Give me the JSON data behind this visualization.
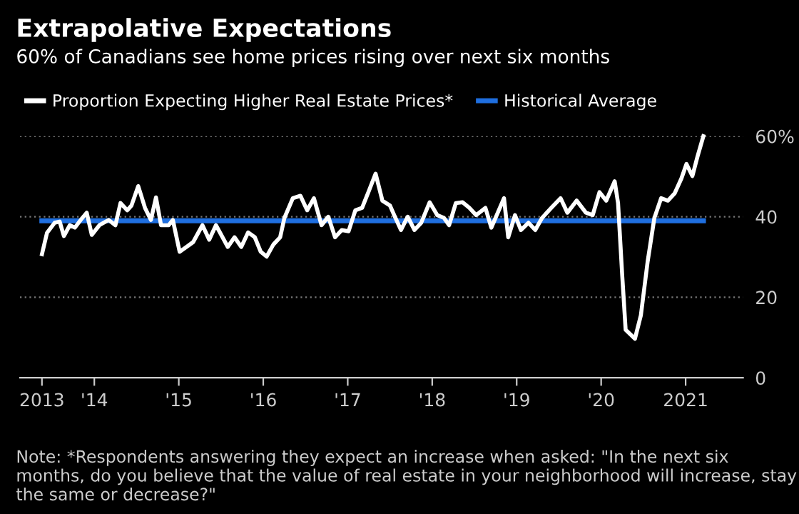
{
  "chart_data": {
    "type": "line",
    "title": "Extrapolative Expectations",
    "subtitle": "60% of Canadians see home prices rising over next six months",
    "series": [
      {
        "name": "Proportion Expecting Higher Real Estate Prices*",
        "color": "#ffffff",
        "x": [
          2013.38,
          2013.44,
          2013.53,
          2013.59,
          2013.64,
          2013.71,
          2013.77,
          2013.85,
          2013.91,
          2013.97,
          2014.06,
          2014.17,
          2014.25,
          2014.31,
          2014.39,
          2014.44,
          2014.52,
          2014.6,
          2014.67,
          2014.73,
          2014.79,
          2014.88,
          2014.93,
          2015.01,
          2015.09,
          2015.17,
          2015.28,
          2015.36,
          2015.44,
          2015.58,
          2015.66,
          2015.74,
          2015.82,
          2015.9,
          2015.97,
          2016.04,
          2016.12,
          2016.2,
          2016.25,
          2016.35,
          2016.44,
          2016.52,
          2016.6,
          2016.69,
          2016.77,
          2016.85,
          2016.93,
          2017.01,
          2017.09,
          2017.17,
          2017.25,
          2017.33,
          2017.41,
          2017.5,
          2017.55,
          2017.63,
          2017.71,
          2017.79,
          2017.87,
          2017.97,
          2018.06,
          2018.14,
          2018.2,
          2018.28,
          2018.36,
          2018.44,
          2018.52,
          2018.63,
          2018.7,
          2018.78,
          2018.85,
          2018.9,
          2018.98,
          2019.05,
          2019.14,
          2019.22,
          2019.3,
          2019.41,
          2019.52,
          2019.6,
          2019.71,
          2019.82,
          2019.9,
          2019.98,
          2020.06,
          2020.16,
          2020.2,
          2020.25,
          2020.29,
          2020.4,
          2020.47,
          2020.55,
          2020.63,
          2020.71,
          2020.79,
          2020.87,
          2020.95,
          2021.01,
          2021.08,
          2021.14,
          2021.21
        ],
        "values": [
          30.7,
          36,
          38.5,
          38.8,
          35.2,
          37.9,
          37.3,
          39.5,
          41,
          35.5,
          37.9,
          39.2,
          37.9,
          43.4,
          41.6,
          42.8,
          47.6,
          42.2,
          39.2,
          44.8,
          37.9,
          37.9,
          39.2,
          31.3,
          32.5,
          33.7,
          37.9,
          34.3,
          37.9,
          32.5,
          34.9,
          32.5,
          36.1,
          34.9,
          31.3,
          30.1,
          33.1,
          34.9,
          39.7,
          44.6,
          45.2,
          41.6,
          44.6,
          37.9,
          40,
          34.9,
          36.7,
          36.4,
          41.6,
          42.2,
          46.4,
          50.7,
          44,
          42.8,
          40.4,
          36.7,
          40,
          36.7,
          38.5,
          43.6,
          40.4,
          39.7,
          37.9,
          43.4,
          43.6,
          42.2,
          40.4,
          42.2,
          37.3,
          41.2,
          44.6,
          34.9,
          40.4,
          36.7,
          38.5,
          36.7,
          39.7,
          42.2,
          44.6,
          41,
          44,
          41,
          40.4,
          46.1,
          44,
          48.8,
          43.4,
          25.2,
          11.9,
          9.7,
          15.5,
          28.8,
          39.7,
          44.6,
          44,
          45.8,
          49.5,
          53.1,
          50.1,
          54.9,
          60
        ]
      },
      {
        "name": "Historical Average",
        "color": "#1f6fe0",
        "x": [
          2013.38,
          2021.21
        ],
        "values": [
          39,
          39
        ]
      }
    ],
    "xlim": [
      2013.12,
      2021.68
    ],
    "ylim": [
      0,
      60
    ],
    "xticks": [
      {
        "value": 2013.38,
        "label": "2013"
      },
      {
        "value": 2014,
        "label": "'14"
      },
      {
        "value": 2015,
        "label": "'15"
      },
      {
        "value": 2016,
        "label": "'16"
      },
      {
        "value": 2017,
        "label": "'17"
      },
      {
        "value": 2018,
        "label": "'18"
      },
      {
        "value": 2019,
        "label": "'19"
      },
      {
        "value": 2020,
        "label": "'20"
      },
      {
        "value": 2021,
        "label": "2021"
      }
    ],
    "yticks": [
      0,
      20,
      40,
      {
        "value": 60,
        "label": "60%"
      }
    ],
    "grid": "y",
    "legend": "top left",
    "line_style": "solid",
    "annotations": [
      "Note: *Respondents answering they expect an increase when asked: \"In the next six months, do you believe that the value of real estate in your neighborhood will increase, stay the same or decrease?\""
    ]
  }
}
